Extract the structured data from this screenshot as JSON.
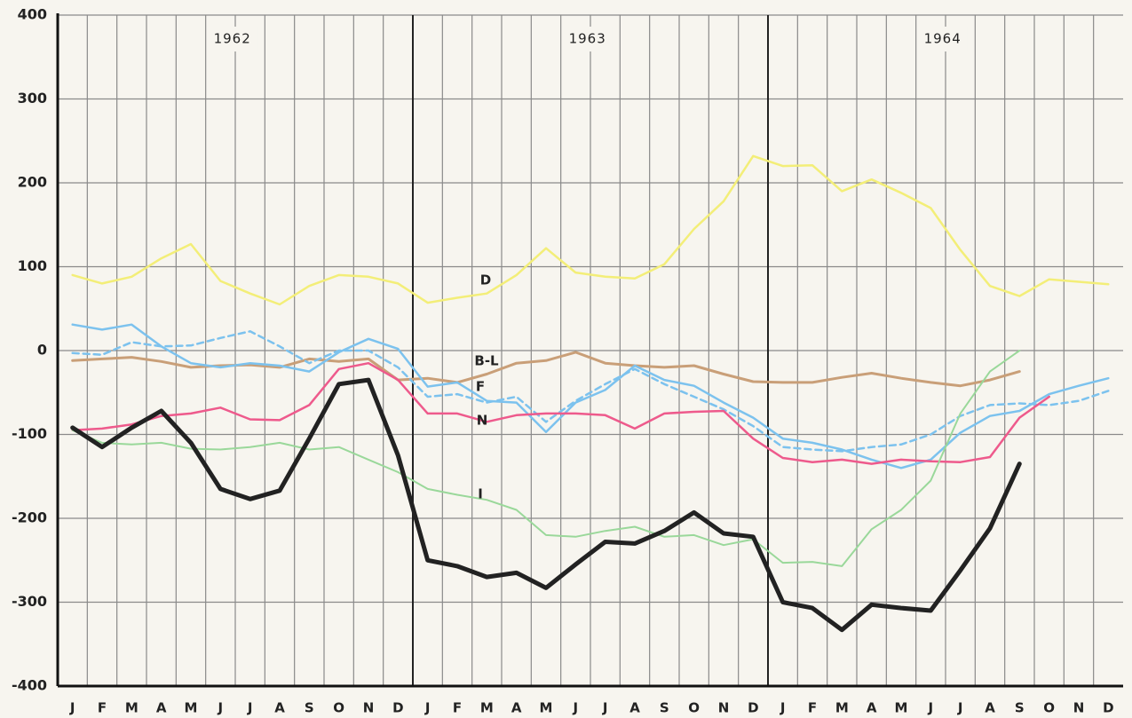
{
  "chart_data": {
    "type": "line",
    "categories": [
      "J",
      "F",
      "M",
      "A",
      "M",
      "J",
      "J",
      "A",
      "S",
      "O",
      "N",
      "D",
      "J",
      "F",
      "M",
      "A",
      "M",
      "J",
      "J",
      "A",
      "S",
      "O",
      "N",
      "D",
      "J",
      "F",
      "M",
      "A",
      "M",
      "J",
      "J",
      "A",
      "S",
      "O",
      "N",
      "D"
    ],
    "year_labels": [
      "1962",
      "1963",
      "1964"
    ],
    "ylim": [
      -400,
      400
    ],
    "yticks": [
      -400,
      -300,
      -200,
      -100,
      0,
      100,
      200,
      300,
      400
    ],
    "grid": true,
    "series": [
      {
        "name": "D",
        "color": "#f3ee78",
        "line_width": 2.5,
        "values": [
          90,
          80,
          88,
          110,
          127,
          83,
          68,
          55,
          77,
          90,
          88,
          80,
          57,
          63,
          68,
          90,
          122,
          93,
          88,
          86,
          103,
          145,
          178,
          232,
          220,
          221,
          190,
          204,
          188,
          170,
          120,
          77,
          65,
          85,
          82,
          79
        ]
      },
      {
        "name": "B-L",
        "color": "#c99f78",
        "line_width": 3,
        "values": [
          -12,
          -10,
          -8,
          -13,
          -20,
          -18,
          -17,
          -20,
          -10,
          -13,
          -10,
          -35,
          -33,
          -38,
          -28,
          -15,
          -12,
          -2,
          -15,
          -18,
          -20,
          -18,
          -28,
          -37,
          -38,
          -38,
          -32,
          -27,
          -33,
          -38,
          -42,
          -35,
          -25,
          null,
          null,
          null
        ]
      },
      {
        "name": "F",
        "color": "#7cc2ee",
        "line_width": 2.5,
        "values": [
          31,
          25,
          31,
          5,
          -15,
          -20,
          -15,
          -18,
          -25,
          -2,
          14,
          2,
          -43,
          -38,
          -60,
          -62,
          -97,
          -62,
          -47,
          -18,
          -35,
          -42,
          -62,
          -80,
          -105,
          -110,
          -118,
          -130,
          -140,
          -130,
          -98,
          -78,
          -72,
          -52,
          -42,
          -33
        ]
      },
      {
        "color": "#7cc2ee",
        "line_width": 2.5,
        "style": "dashed",
        "values": [
          -3,
          -5,
          10,
          5,
          6,
          15,
          23,
          5,
          -15,
          0,
          0,
          -20,
          -55,
          -52,
          -62,
          -55,
          -85,
          -60,
          -40,
          -22,
          -40,
          -55,
          -70,
          -90,
          -115,
          -118,
          -120,
          -115,
          -112,
          -100,
          -78,
          -65,
          -63,
          -65,
          -60,
          -48
        ]
      },
      {
        "name": "N",
        "color": "#ee5a8c",
        "line_width": 2.5,
        "values": [
          -95,
          -93,
          -88,
          -78,
          -75,
          -68,
          -82,
          -83,
          -65,
          -22,
          -15,
          -35,
          -75,
          -75,
          -85,
          -77,
          -75,
          -75,
          -77,
          -93,
          -75,
          -73,
          -72,
          -105,
          -128,
          -133,
          -130,
          -135,
          -130,
          -132,
          -133,
          -127,
          -80,
          -55,
          null,
          null
        ]
      },
      {
        "name": "I",
        "color": "#9ad89a",
        "line_width": 2,
        "values": [
          -95,
          -110,
          -112,
          -110,
          -117,
          -118,
          -115,
          -110,
          -118,
          -115,
          -130,
          -145,
          -165,
          -172,
          -178,
          -190,
          -220,
          -222,
          -215,
          -210,
          -222,
          -220,
          -232,
          -225,
          -253,
          -252,
          -257,
          -213,
          -190,
          -155,
          -75,
          -25,
          0,
          null,
          null,
          null
        ]
      },
      {
        "color": "#222222",
        "line_width": 5,
        "values": [
          -92,
          -115,
          -92,
          -72,
          -110,
          -165,
          -177,
          -167,
          -105,
          -40,
          -35,
          -125,
          -250,
          -257,
          -270,
          -265,
          -283,
          -255,
          -228,
          -230,
          -215,
          -193,
          -218,
          -222,
          -300,
          -307,
          -333,
          -303,
          -307,
          -310,
          -262,
          -212,
          -135,
          null,
          null,
          null
        ]
      }
    ]
  }
}
